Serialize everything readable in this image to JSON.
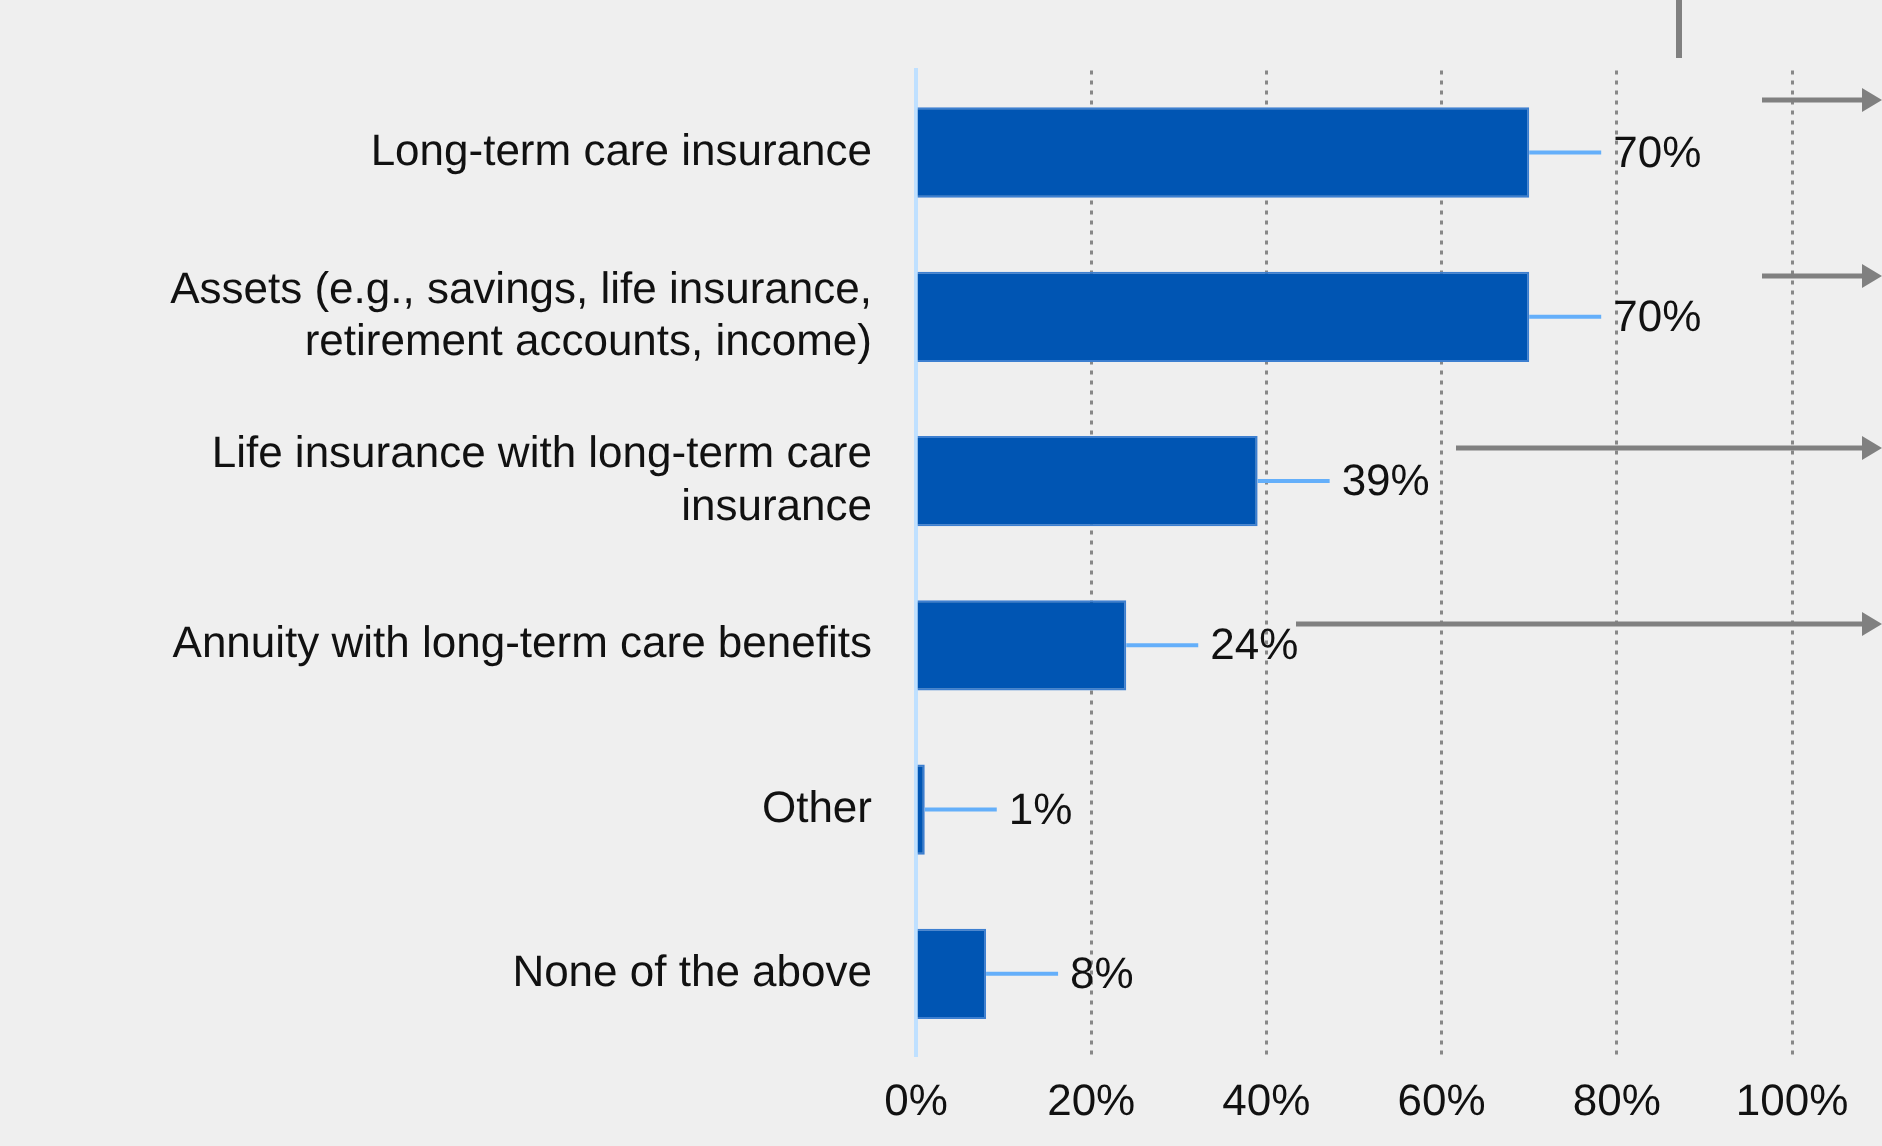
{
  "chart_data": {
    "type": "bar",
    "orientation": "horizontal",
    "categories": [
      "Long-term care insurance",
      "Assets (e.g., savings, life insurance, retirement accounts, income)",
      "Life insurance with long-term care insurance",
      "Annuity with long-term care benefits",
      "Other",
      "None of the above"
    ],
    "values": [
      70,
      70,
      39,
      24,
      1,
      8
    ],
    "value_labels": [
      "70%",
      "70%",
      "39%",
      "24%",
      "1%",
      "8%"
    ],
    "color": "#0055b3",
    "xlim": [
      0,
      100
    ],
    "xticks": [
      {
        "value": 0,
        "label": "0%"
      },
      {
        "value": 20,
        "label": "20%"
      },
      {
        "value": 40,
        "label": "40%"
      },
      {
        "value": 60,
        "label": "60%"
      },
      {
        "value": 80,
        "label": "80%"
      },
      {
        "value": 100,
        "label": "100%"
      }
    ],
    "grid": "x",
    "legend": false
  }
}
